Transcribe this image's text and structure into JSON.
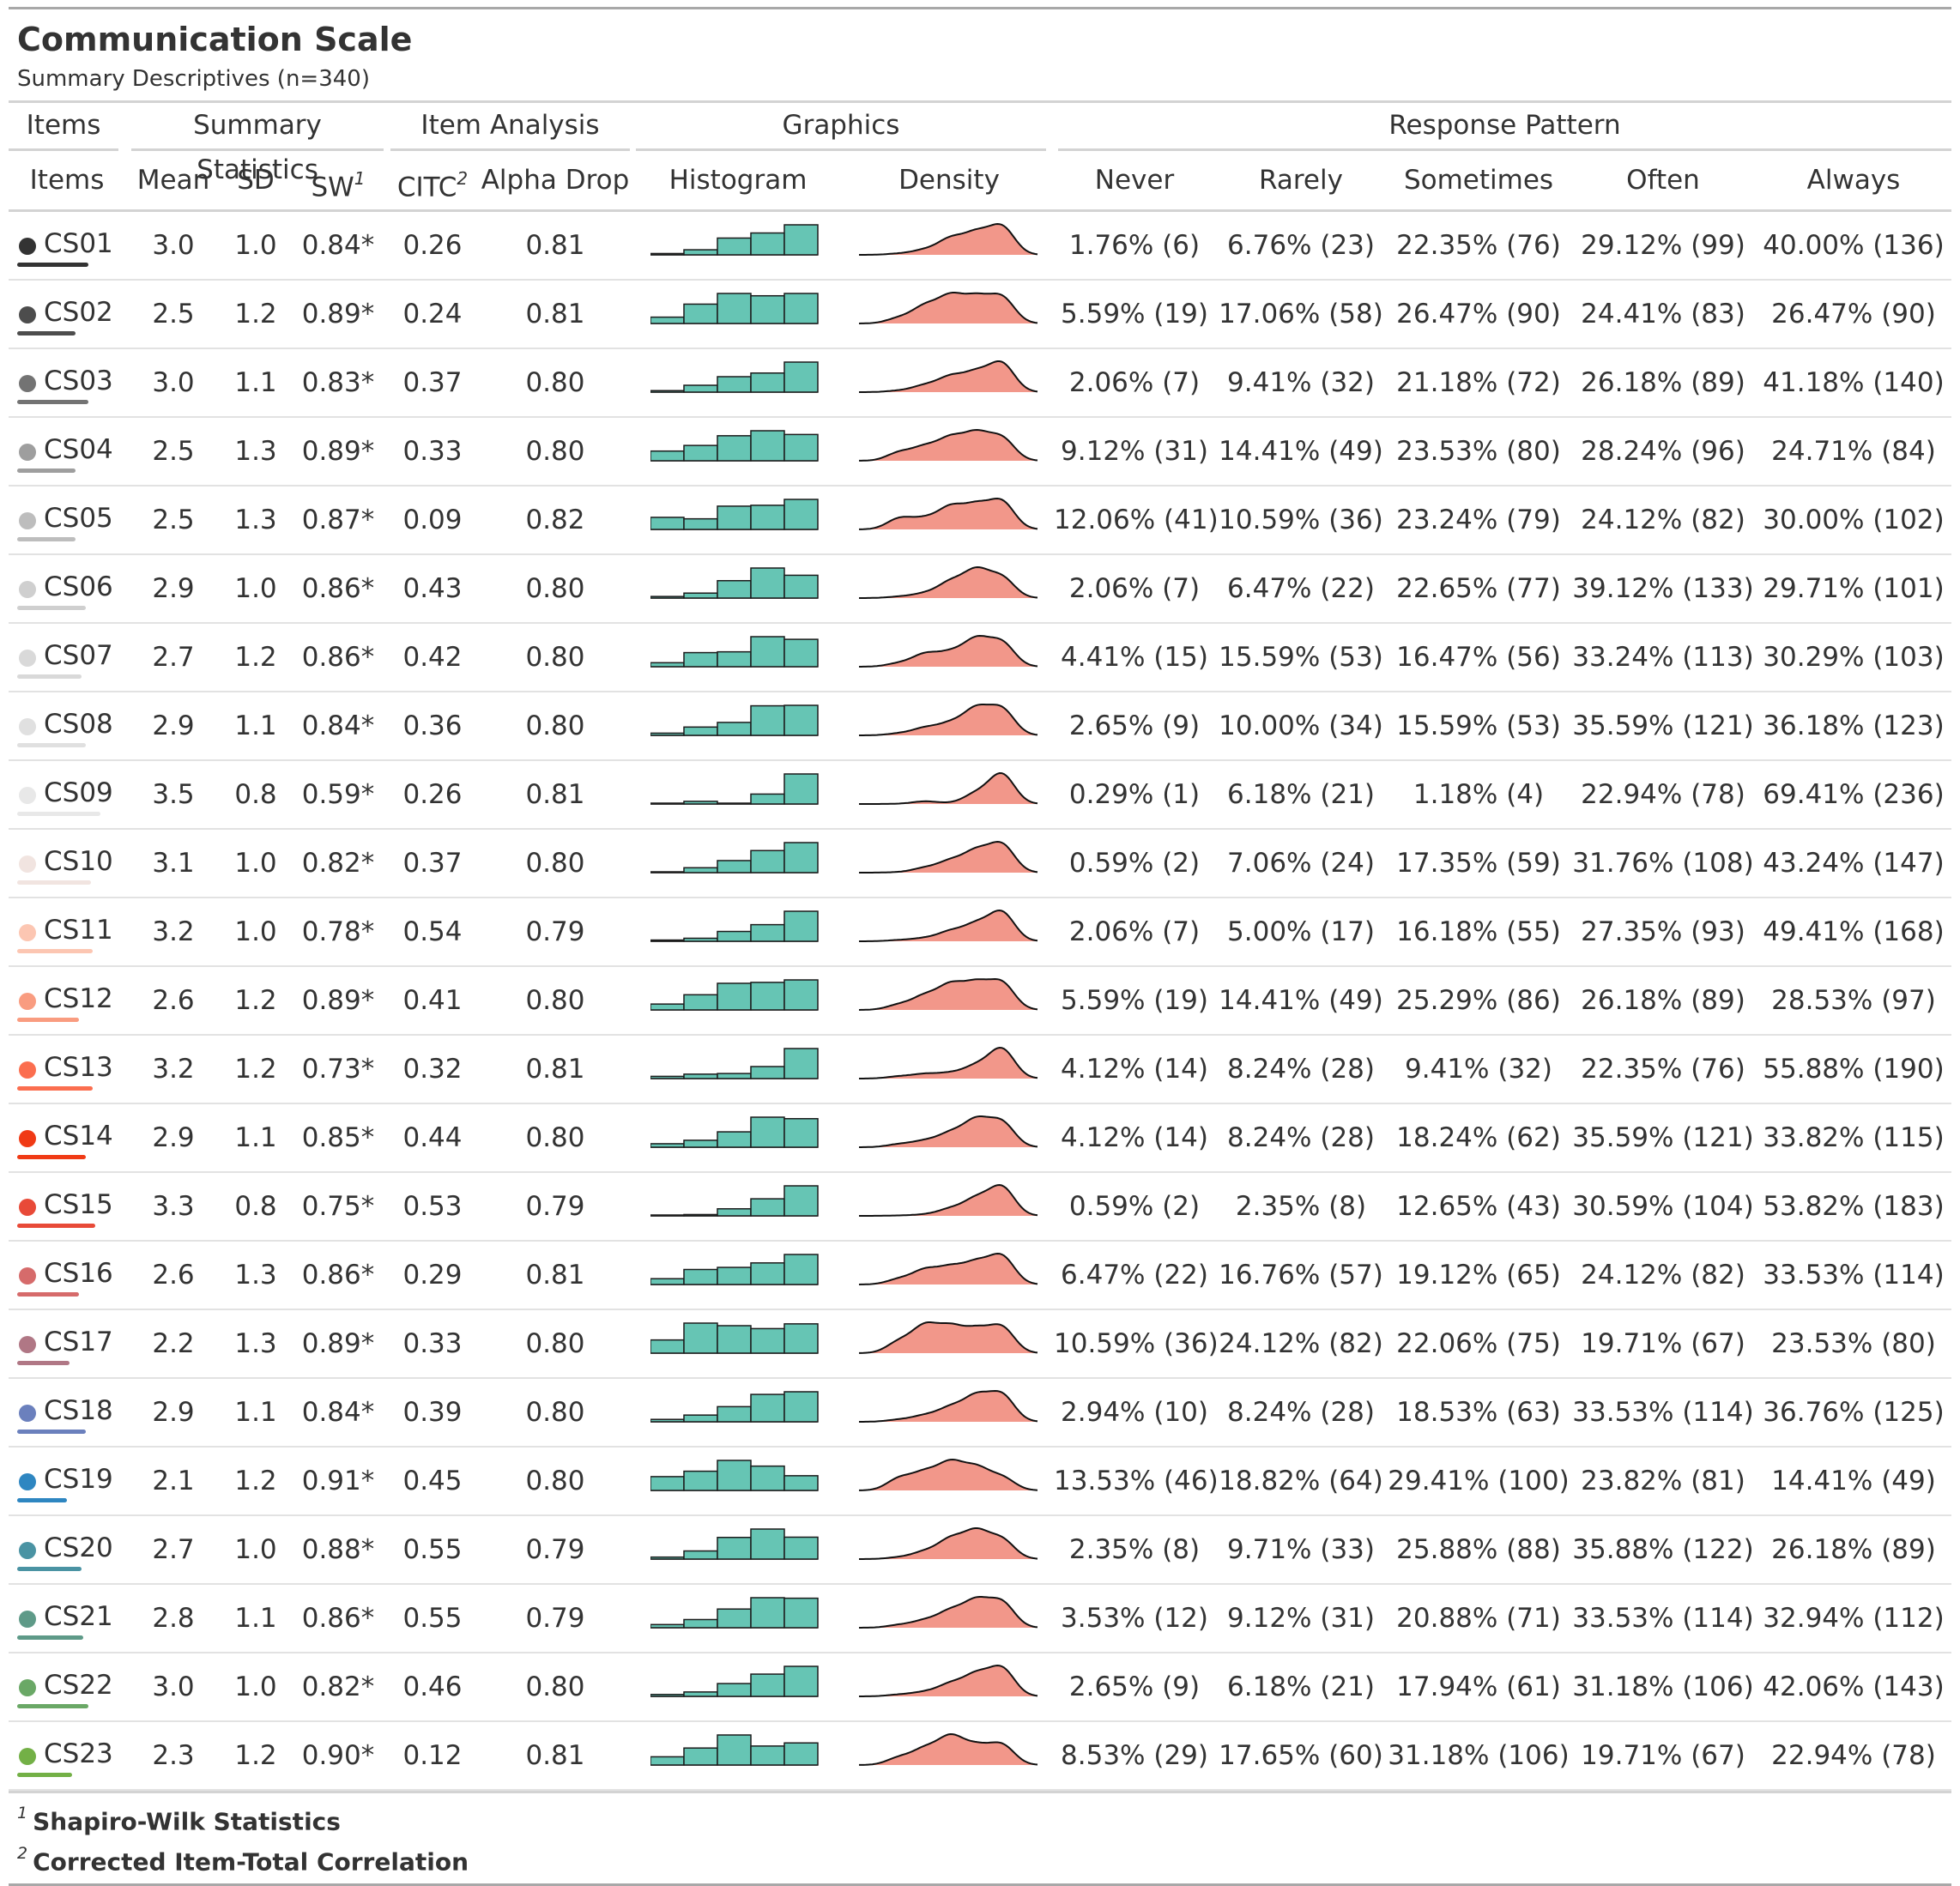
{
  "table": {
    "title": "Communication Scale",
    "subtitle": "Summary Descriptives (n=340)",
    "spanners": [
      "Items",
      "Summary Statistics",
      "Item Analysis",
      "Graphics",
      "Response Pattern"
    ],
    "columns": {
      "items": "Items",
      "mean": "Mean",
      "sd": "SD",
      "sw": "SW",
      "sw_mark": "1",
      "citc": "CITC",
      "citc_mark": "2",
      "alpha": "Alpha Drop",
      "histogram": "Histogram",
      "density": "Density",
      "never": "Never",
      "rarely": "Rarely",
      "sometimes": "Sometimes",
      "often": "Often",
      "always": "Always"
    },
    "colors": {
      "histogram_fill": "#66c5b4",
      "histogram_stroke": "#1c1c1c",
      "density_fill": "#f2978a",
      "density_stroke": "#111111"
    },
    "footnotes": [
      {
        "mark": "1",
        "text": "Shapiro-Wilk Statistics"
      },
      {
        "mark": "2",
        "text": "Corrected Item-Total Correlation"
      }
    ],
    "rows": [
      {
        "item": "CS01",
        "color": "#333333",
        "bar_fraction": 0.75,
        "mean": "3.0",
        "sd": "1.0",
        "sw": "0.84*",
        "citc": "0.26",
        "alpha": "0.81",
        "never": "1.76% (6)",
        "rarely": "6.76% (23)",
        "sometimes": "22.35% (76)",
        "often": "29.12% (99)",
        "always": "40.00% (136)"
      },
      {
        "item": "CS02",
        "color": "#4d4d4d",
        "bar_fraction": 0.62,
        "mean": "2.5",
        "sd": "1.2",
        "sw": "0.89*",
        "citc": "0.24",
        "alpha": "0.81",
        "never": "5.59% (19)",
        "rarely": "17.06% (58)",
        "sometimes": "26.47% (90)",
        "often": "24.41% (83)",
        "always": "26.47% (90)"
      },
      {
        "item": "CS03",
        "color": "#737373",
        "bar_fraction": 0.75,
        "mean": "3.0",
        "sd": "1.1",
        "sw": "0.83*",
        "citc": "0.37",
        "alpha": "0.80",
        "never": "2.06% (7)",
        "rarely": "9.41% (32)",
        "sometimes": "21.18% (72)",
        "often": "26.18% (89)",
        "always": "41.18% (140)"
      },
      {
        "item": "CS04",
        "color": "#9e9e9e",
        "bar_fraction": 0.62,
        "mean": "2.5",
        "sd": "1.3",
        "sw": "0.89*",
        "citc": "0.33",
        "alpha": "0.80",
        "never": "9.12% (31)",
        "rarely": "14.41% (49)",
        "sometimes": "23.53% (80)",
        "often": "28.24% (96)",
        "always": "24.71% (84)"
      },
      {
        "item": "CS05",
        "color": "#bdbdbd",
        "bar_fraction": 0.62,
        "mean": "2.5",
        "sd": "1.3",
        "sw": "0.87*",
        "citc": "0.09",
        "alpha": "0.82",
        "never": "12.06% (41)",
        "rarely": "10.59% (36)",
        "sometimes": "23.24% (79)",
        "often": "24.12% (82)",
        "always": "30.00% (102)"
      },
      {
        "item": "CS06",
        "color": "#cfcfcf",
        "bar_fraction": 0.73,
        "mean": "2.9",
        "sd": "1.0",
        "sw": "0.86*",
        "citc": "0.43",
        "alpha": "0.80",
        "never": "2.06% (7)",
        "rarely": "6.47% (22)",
        "sometimes": "22.65% (77)",
        "often": "39.12% (133)",
        "always": "29.71% (101)"
      },
      {
        "item": "CS07",
        "color": "#d9d9d9",
        "bar_fraction": 0.68,
        "mean": "2.7",
        "sd": "1.2",
        "sw": "0.86*",
        "citc": "0.42",
        "alpha": "0.80",
        "never": "4.41% (15)",
        "rarely": "15.59% (53)",
        "sometimes": "16.47% (56)",
        "often": "33.24% (113)",
        "always": "30.29% (103)"
      },
      {
        "item": "CS08",
        "color": "#e0e0e0",
        "bar_fraction": 0.73,
        "mean": "2.9",
        "sd": "1.1",
        "sw": "0.84*",
        "citc": "0.36",
        "alpha": "0.80",
        "never": "2.65% (9)",
        "rarely": "10.00% (34)",
        "sometimes": "15.59% (53)",
        "often": "35.59% (121)",
        "always": "36.18% (123)"
      },
      {
        "item": "CS09",
        "color": "#e8e8e8",
        "bar_fraction": 0.88,
        "mean": "3.5",
        "sd": "0.8",
        "sw": "0.59*",
        "citc": "0.26",
        "alpha": "0.81",
        "never": "0.29% (1)",
        "rarely": "6.18% (21)",
        "sometimes": "1.18% (4)",
        "often": "22.94% (78)",
        "always": "69.41% (236)"
      },
      {
        "item": "CS10",
        "color": "#f1e4e0",
        "bar_fraction": 0.78,
        "mean": "3.1",
        "sd": "1.0",
        "sw": "0.82*",
        "citc": "0.37",
        "alpha": "0.80",
        "never": "0.59% (2)",
        "rarely": "7.06% (24)",
        "sometimes": "17.35% (59)",
        "often": "31.76% (108)",
        "always": "43.24% (147)"
      },
      {
        "item": "CS11",
        "color": "#fcc6b2",
        "bar_fraction": 0.8,
        "mean": "3.2",
        "sd": "1.0",
        "sw": "0.78*",
        "citc": "0.54",
        "alpha": "0.79",
        "never": "2.06% (7)",
        "rarely": "5.00% (17)",
        "sometimes": "16.18% (55)",
        "often": "27.35% (93)",
        "always": "49.41% (168)"
      },
      {
        "item": "CS12",
        "color": "#f99c80",
        "bar_fraction": 0.65,
        "mean": "2.6",
        "sd": "1.2",
        "sw": "0.89*",
        "citc": "0.41",
        "alpha": "0.80",
        "never": "5.59% (19)",
        "rarely": "14.41% (49)",
        "sometimes": "25.29% (86)",
        "often": "26.18% (89)",
        "always": "28.53% (97)"
      },
      {
        "item": "CS13",
        "color": "#fb6e4f",
        "bar_fraction": 0.8,
        "mean": "3.2",
        "sd": "1.2",
        "sw": "0.73*",
        "citc": "0.32",
        "alpha": "0.81",
        "never": "4.12% (14)",
        "rarely": "8.24% (28)",
        "sometimes": "9.41% (32)",
        "often": "22.35% (76)",
        "always": "55.88% (190)"
      },
      {
        "item": "CS14",
        "color": "#f03a15",
        "bar_fraction": 0.73,
        "mean": "2.9",
        "sd": "1.1",
        "sw": "0.85*",
        "citc": "0.44",
        "alpha": "0.80",
        "never": "4.12% (14)",
        "rarely": "8.24% (28)",
        "sometimes": "18.24% (62)",
        "often": "35.59% (121)",
        "always": "33.82% (115)"
      },
      {
        "item": "CS15",
        "color": "#e84a38",
        "bar_fraction": 0.83,
        "mean": "3.3",
        "sd": "0.8",
        "sw": "0.75*",
        "citc": "0.53",
        "alpha": "0.79",
        "never": "0.59% (2)",
        "rarely": "2.35% (8)",
        "sometimes": "12.65% (43)",
        "often": "30.59% (104)",
        "always": "53.82% (183)"
      },
      {
        "item": "CS16",
        "color": "#d66b6b",
        "bar_fraction": 0.65,
        "mean": "2.6",
        "sd": "1.3",
        "sw": "0.86*",
        "citc": "0.29",
        "alpha": "0.81",
        "never": "6.47% (22)",
        "rarely": "16.76% (57)",
        "sometimes": "19.12% (65)",
        "often": "24.12% (82)",
        "always": "33.53% (114)"
      },
      {
        "item": "CS17",
        "color": "#b07785",
        "bar_fraction": 0.55,
        "mean": "2.2",
        "sd": "1.3",
        "sw": "0.89*",
        "citc": "0.33",
        "alpha": "0.80",
        "never": "10.59% (36)",
        "rarely": "24.12% (82)",
        "sometimes": "22.06% (75)",
        "often": "19.71% (67)",
        "always": "23.53% (80)"
      },
      {
        "item": "CS18",
        "color": "#6b80bd",
        "bar_fraction": 0.73,
        "mean": "2.9",
        "sd": "1.1",
        "sw": "0.84*",
        "citc": "0.39",
        "alpha": "0.80",
        "never": "2.94% (10)",
        "rarely": "8.24% (28)",
        "sometimes": "18.53% (63)",
        "often": "33.53% (114)",
        "always": "36.76% (125)"
      },
      {
        "item": "CS19",
        "color": "#2e86c1",
        "bar_fraction": 0.53,
        "mean": "2.1",
        "sd": "1.2",
        "sw": "0.91*",
        "citc": "0.45",
        "alpha": "0.80",
        "never": "13.53% (46)",
        "rarely": "18.82% (64)",
        "sometimes": "29.41% (100)",
        "often": "23.82% (81)",
        "always": "14.41% (49)"
      },
      {
        "item": "CS20",
        "color": "#4a93a3",
        "bar_fraction": 0.68,
        "mean": "2.7",
        "sd": "1.0",
        "sw": "0.88*",
        "citc": "0.55",
        "alpha": "0.79",
        "never": "2.35% (8)",
        "rarely": "9.71% (33)",
        "sometimes": "25.88% (88)",
        "often": "35.88% (122)",
        "always": "26.18% (89)"
      },
      {
        "item": "CS21",
        "color": "#5e9a88",
        "bar_fraction": 0.7,
        "mean": "2.8",
        "sd": "1.1",
        "sw": "0.86*",
        "citc": "0.55",
        "alpha": "0.79",
        "never": "3.53% (12)",
        "rarely": "9.12% (31)",
        "sometimes": "20.88% (71)",
        "often": "33.53% (114)",
        "always": "32.94% (112)"
      },
      {
        "item": "CS22",
        "color": "#6aa866",
        "bar_fraction": 0.75,
        "mean": "3.0",
        "sd": "1.0",
        "sw": "0.82*",
        "citc": "0.46",
        "alpha": "0.80",
        "never": "2.65% (9)",
        "rarely": "6.18% (21)",
        "sometimes": "17.94% (61)",
        "often": "31.18% (106)",
        "always": "42.06% (143)"
      },
      {
        "item": "CS23",
        "color": "#73b046",
        "bar_fraction": 0.58,
        "mean": "2.3",
        "sd": "1.2",
        "sw": "0.90*",
        "citc": "0.12",
        "alpha": "0.81",
        "never": "8.53% (29)",
        "rarely": "17.65% (60)",
        "sometimes": "31.18% (106)",
        "often": "19.71% (67)",
        "always": "22.94% (78)"
      }
    ]
  }
}
